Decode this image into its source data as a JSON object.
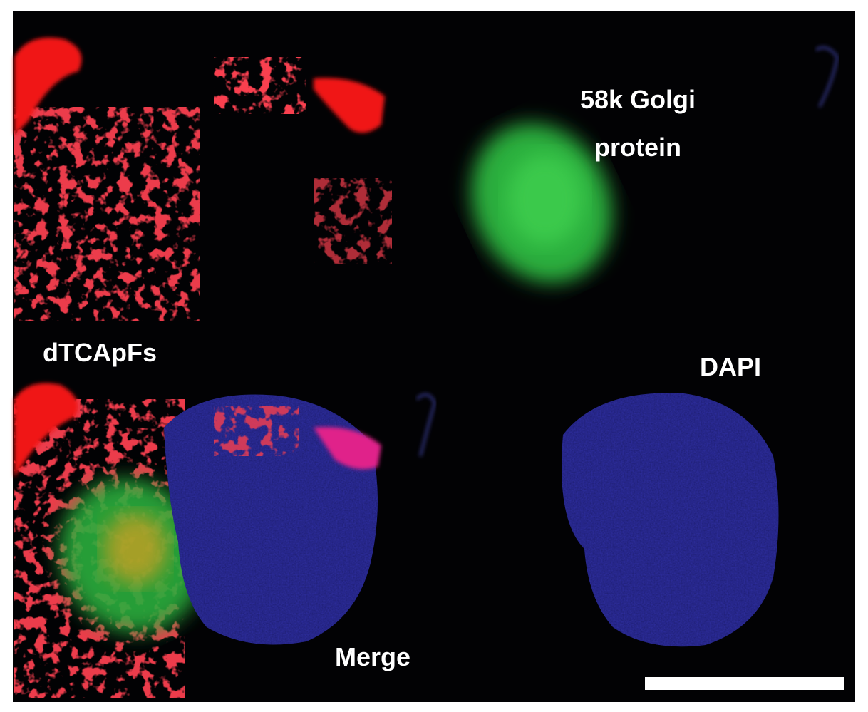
{
  "labels": {
    "red": "dTCApFs",
    "green": [
      "58k Golgi",
      "protein"
    ],
    "blue": "DAPI",
    "merge": "Merge"
  }
}
